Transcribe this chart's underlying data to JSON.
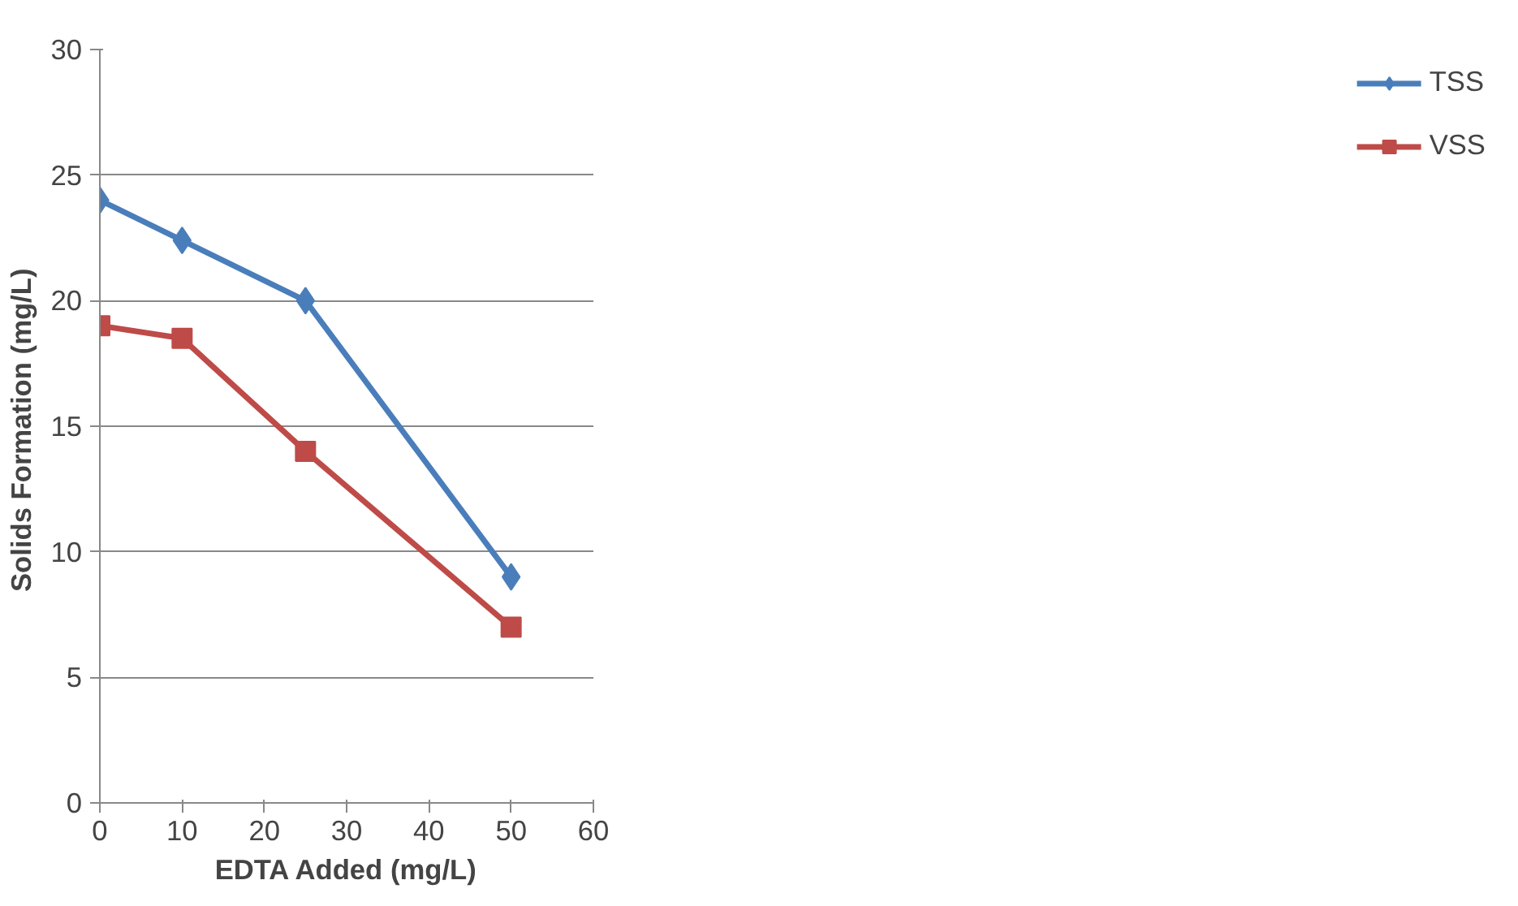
{
  "chart_data": {
    "type": "line",
    "xlabel": "EDTA Added (mg/L)",
    "ylabel": "Solids  Formation (mg/L)",
    "x": [
      0,
      10,
      25,
      50
    ],
    "series": [
      {
        "name": "TSS",
        "color": "#4a7ebb",
        "marker": "diamond",
        "values": [
          24,
          22.4,
          20,
          9
        ]
      },
      {
        "name": "VSS",
        "color": "#be4b48",
        "marker": "square",
        "values": [
          19,
          18.5,
          14,
          7
        ]
      }
    ],
    "xlim": [
      0,
      60
    ],
    "xticks": [
      0,
      10,
      20,
      30,
      40,
      50,
      60
    ],
    "ylim": [
      0,
      30
    ],
    "yticks": [
      0,
      5,
      10,
      15,
      20,
      25,
      30
    ],
    "grid": "y",
    "legend": "right",
    "line_style": "solid"
  }
}
